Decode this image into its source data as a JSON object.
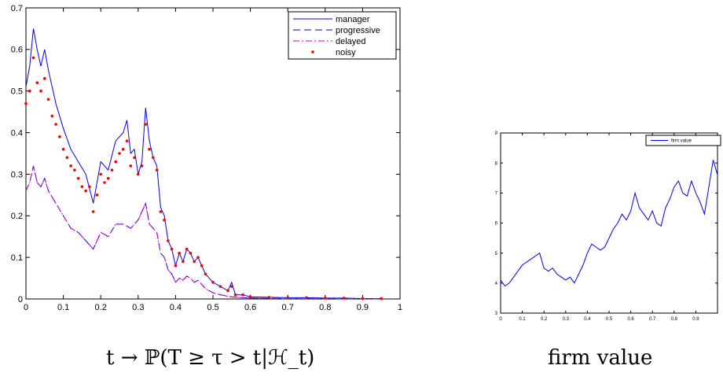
{
  "chart_data": [
    {
      "type": "line",
      "caption": "t → ℙ(T ≥ τ > t|ℋ_t)",
      "xlim": [
        0,
        1
      ],
      "ylim": [
        0,
        0.7
      ],
      "xticks": [
        "0",
        "0.1",
        "0.2",
        "0.3",
        "0.4",
        "0.5",
        "0.6",
        "0.7",
        "0.8",
        "0.9",
        "1"
      ],
      "yticks": [
        "0",
        "0.1",
        "0.2",
        "0.3",
        "0.4",
        "0.5",
        "0.6",
        "0.7"
      ],
      "legend": "top-right",
      "series": [
        {
          "name": "manager",
          "style": "solid",
          "color": "#0000ee",
          "x": [
            0,
            0.01,
            0.02,
            0.03,
            0.04,
            0.05,
            0.06,
            0.08,
            0.1,
            0.12,
            0.14,
            0.16,
            0.18,
            0.2,
            0.22,
            0.24,
            0.26,
            0.27,
            0.28,
            0.29,
            0.3,
            0.31,
            0.32,
            0.33,
            0.34,
            0.35,
            0.36,
            0.37,
            0.38,
            0.39,
            0.4,
            0.41,
            0.42,
            0.43,
            0.44,
            0.45,
            0.46,
            0.47,
            0.48,
            0.5,
            0.52,
            0.54,
            0.55,
            0.56,
            0.58,
            0.6,
            0.65,
            0.7,
            0.75,
            0.8,
            0.85,
            0.9,
            0.95
          ],
          "y": [
            0.51,
            0.56,
            0.65,
            0.6,
            0.56,
            0.6,
            0.55,
            0.47,
            0.41,
            0.36,
            0.33,
            0.3,
            0.23,
            0.33,
            0.31,
            0.38,
            0.4,
            0.43,
            0.35,
            0.36,
            0.3,
            0.33,
            0.46,
            0.38,
            0.34,
            0.32,
            0.22,
            0.2,
            0.14,
            0.12,
            0.08,
            0.11,
            0.09,
            0.12,
            0.11,
            0.09,
            0.1,
            0.08,
            0.06,
            0.04,
            0.03,
            0.02,
            0.04,
            0.01,
            0.01,
            0.005,
            0.004,
            0.003,
            0.003,
            0.002,
            0.002,
            0.001,
            0.001
          ]
        },
        {
          "name": "progressive",
          "style": "dashed",
          "color": "#0000ee",
          "x": [
            0,
            0.01,
            0.02,
            0.03,
            0.04,
            0.05,
            0.06,
            0.08,
            0.1,
            0.12,
            0.14,
            0.16,
            0.18,
            0.2,
            0.22,
            0.24,
            0.26,
            0.28,
            0.3,
            0.31,
            0.32,
            0.33,
            0.34,
            0.35,
            0.36,
            0.37,
            0.38,
            0.39,
            0.4,
            0.41,
            0.42,
            0.43,
            0.44,
            0.45,
            0.46,
            0.47,
            0.48,
            0.5,
            0.52,
            0.55,
            0.6,
            0.7,
            0.8,
            0.9,
            0.95
          ],
          "y": [
            0.26,
            0.28,
            0.32,
            0.28,
            0.27,
            0.29,
            0.26,
            0.23,
            0.2,
            0.17,
            0.16,
            0.14,
            0.12,
            0.16,
            0.15,
            0.18,
            0.18,
            0.17,
            0.19,
            0.21,
            0.23,
            0.18,
            0.17,
            0.16,
            0.11,
            0.1,
            0.07,
            0.06,
            0.04,
            0.05,
            0.045,
            0.055,
            0.05,
            0.04,
            0.045,
            0.035,
            0.025,
            0.015,
            0.01,
            0.005,
            0.002,
            0.001,
            0.001,
            0.0005,
            0.0005
          ]
        },
        {
          "name": "delayed",
          "style": "dashdot",
          "color": "#cc00cc",
          "x": [
            0,
            0.01,
            0.02,
            0.03,
            0.04,
            0.05,
            0.06,
            0.08,
            0.1,
            0.12,
            0.14,
            0.16,
            0.18,
            0.2,
            0.22,
            0.24,
            0.26,
            0.28,
            0.3,
            0.31,
            0.32,
            0.33,
            0.34,
            0.35,
            0.36,
            0.37,
            0.38,
            0.39,
            0.4,
            0.41,
            0.42,
            0.43,
            0.44,
            0.45,
            0.46,
            0.47,
            0.48,
            0.5,
            0.52,
            0.55,
            0.6,
            0.7,
            0.8,
            0.9,
            0.95
          ],
          "y": [
            0.26,
            0.28,
            0.32,
            0.28,
            0.27,
            0.29,
            0.26,
            0.23,
            0.2,
            0.17,
            0.16,
            0.14,
            0.12,
            0.16,
            0.15,
            0.18,
            0.18,
            0.17,
            0.19,
            0.21,
            0.23,
            0.18,
            0.17,
            0.16,
            0.11,
            0.1,
            0.07,
            0.06,
            0.04,
            0.05,
            0.045,
            0.055,
            0.05,
            0.04,
            0.045,
            0.035,
            0.025,
            0.015,
            0.01,
            0.005,
            0.002,
            0.001,
            0.001,
            0.0005,
            0.0005
          ]
        },
        {
          "name": "noisy",
          "style": "dots",
          "color": "#ee0000",
          "x": [
            0,
            0.01,
            0.02,
            0.03,
            0.04,
            0.05,
            0.06,
            0.07,
            0.08,
            0.09,
            0.1,
            0.11,
            0.12,
            0.13,
            0.14,
            0.15,
            0.16,
            0.17,
            0.18,
            0.19,
            0.2,
            0.21,
            0.22,
            0.23,
            0.24,
            0.25,
            0.26,
            0.27,
            0.28,
            0.29,
            0.3,
            0.31,
            0.32,
            0.33,
            0.34,
            0.35,
            0.36,
            0.37,
            0.38,
            0.39,
            0.4,
            0.41,
            0.42,
            0.43,
            0.44,
            0.45,
            0.46,
            0.47,
            0.48,
            0.5,
            0.52,
            0.54,
            0.55,
            0.56,
            0.58,
            0.6,
            0.65,
            0.7,
            0.75,
            0.8,
            0.85,
            0.9,
            0.95
          ],
          "y": [
            0.47,
            0.5,
            0.58,
            0.52,
            0.5,
            0.53,
            0.48,
            0.44,
            0.42,
            0.39,
            0.36,
            0.34,
            0.32,
            0.31,
            0.29,
            0.27,
            0.26,
            0.27,
            0.21,
            0.25,
            0.3,
            0.28,
            0.29,
            0.31,
            0.33,
            0.35,
            0.36,
            0.38,
            0.32,
            0.34,
            0.3,
            0.32,
            0.42,
            0.36,
            0.34,
            0.31,
            0.21,
            0.19,
            0.14,
            0.12,
            0.08,
            0.11,
            0.09,
            0.12,
            0.11,
            0.09,
            0.1,
            0.08,
            0.06,
            0.04,
            0.03,
            0.02,
            0.03,
            0.01,
            0.01,
            0.005,
            0.004,
            0.003,
            0.003,
            0.002,
            0.002,
            0.001,
            0.001
          ]
        }
      ]
    },
    {
      "type": "line",
      "caption": "firm value",
      "xlim": [
        0,
        1
      ],
      "ylim": [
        3,
        9
      ],
      "xticks": [
        "0",
        "0.1",
        "0.2",
        "0.3",
        "0.4",
        "0.5",
        "0.6",
        "0.7",
        "0.8",
        "0.9"
      ],
      "yticks": [
        "3",
        "4",
        "5",
        "6",
        "7",
        "8",
        "9"
      ],
      "legend": "top-right",
      "series": [
        {
          "name": "firm value",
          "style": "solid",
          "color": "#0000ee",
          "x": [
            0,
            0.02,
            0.04,
            0.06,
            0.08,
            0.1,
            0.12,
            0.14,
            0.16,
            0.18,
            0.2,
            0.22,
            0.24,
            0.26,
            0.28,
            0.3,
            0.32,
            0.34,
            0.36,
            0.38,
            0.4,
            0.42,
            0.44,
            0.46,
            0.48,
            0.5,
            0.52,
            0.54,
            0.56,
            0.58,
            0.6,
            0.62,
            0.64,
            0.66,
            0.68,
            0.7,
            0.72,
            0.74,
            0.76,
            0.78,
            0.8,
            0.82,
            0.84,
            0.86,
            0.88,
            0.9,
            0.92,
            0.94,
            0.96,
            0.98,
            1.0
          ],
          "y": [
            4.1,
            3.9,
            4.0,
            4.2,
            4.4,
            4.6,
            4.7,
            4.8,
            4.9,
            5.0,
            4.5,
            4.4,
            4.5,
            4.3,
            4.2,
            4.1,
            4.2,
            4.0,
            4.3,
            4.6,
            5.0,
            5.3,
            5.2,
            5.1,
            5.2,
            5.5,
            5.8,
            6.0,
            6.3,
            6.1,
            6.4,
            7.0,
            6.5,
            6.3,
            6.1,
            6.4,
            6.0,
            5.9,
            6.5,
            6.8,
            7.2,
            7.4,
            7.0,
            6.9,
            7.4,
            7.0,
            6.7,
            6.3,
            7.2,
            8.1,
            7.6
          ]
        }
      ]
    }
  ]
}
